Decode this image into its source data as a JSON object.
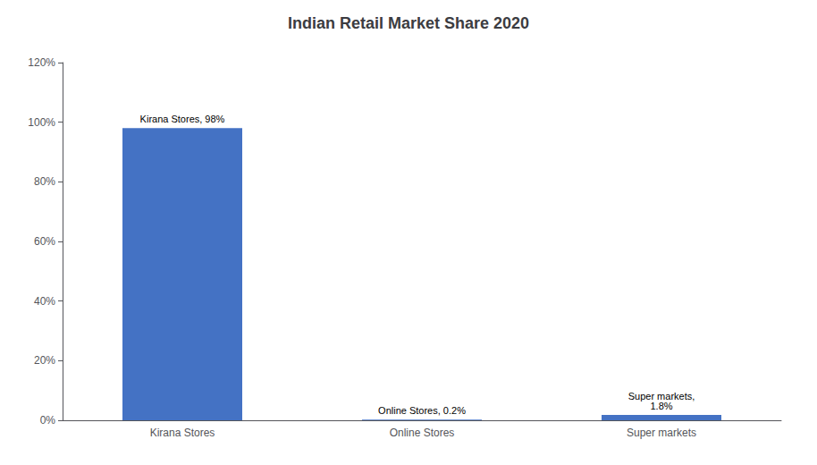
{
  "chart_data": {
    "type": "bar",
    "title": "Indian Retail Market Share 2020",
    "categories": [
      "Kirana Stores",
      "Online Stores",
      "Super markets"
    ],
    "values": [
      98,
      0.2,
      1.8
    ],
    "data_labels": true,
    "value_labels": [
      "Kirana Stores, 98%",
      "Online Stores, 0.2%",
      "Super markets,\n1.8%"
    ],
    "color": "#4472C4",
    "ylim": [
      0,
      120
    ],
    "yticks": [
      {
        "value": 0,
        "label": "0%"
      },
      {
        "value": 20,
        "label": "20%"
      },
      {
        "value": 40,
        "label": "40%"
      },
      {
        "value": 60,
        "label": "60%"
      },
      {
        "value": 80,
        "label": "80%"
      },
      {
        "value": 100,
        "label": "100%"
      },
      {
        "value": 120,
        "label": "120%"
      }
    ],
    "grid": false
  }
}
